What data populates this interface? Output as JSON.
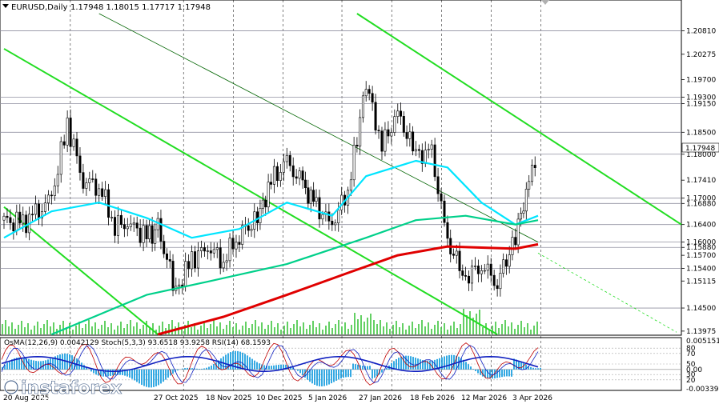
{
  "header": {
    "symbol": "EURUSD,Daily",
    "ohlc": "1.17948 1.18015 1.17717 1.17948",
    "osc_label": "OsMA(12,26,9) 0.0042129  Stoch(5,3,3) 93.6518 93.9258  RSI(14) 68.1593"
  },
  "watermark": {
    "brand": "instaforex",
    "tagline": "Instant Forex Trading"
  },
  "colors": {
    "bull_candle": "#000000",
    "bear_candle": "#000000",
    "ema_fast": "#00e5ff",
    "ema_mid": "#00d08a",
    "ema_slow": "#e00000",
    "channel": "#22dd22",
    "trendline": "#006400",
    "volume": "#22bb22",
    "osma": "#1fa0e0",
    "stoch_main": "#c00000",
    "stoch_signal": "#1020c0",
    "rsi": "#1020c0",
    "level_line": "#9090a0",
    "grid": "#000000"
  },
  "chart_data": {
    "type": "candlestick",
    "symbol": "EURUSD",
    "timeframe": "Daily",
    "ylim": [
      1.139,
      1.212
    ],
    "y_ticks": [
      "1.20810",
      "1.20275",
      "1.19700",
      "1.19300",
      "1.19150",
      "1.18500",
      "1.18000",
      "1.17410",
      "1.17000",
      "1.16880",
      "1.16400",
      "1.16000",
      "1.15880",
      "1.15700",
      "1.15400",
      "1.15115",
      "1.14500",
      "1.13975"
    ],
    "highlight_levels": [
      "1.20810",
      "1.19300",
      "1.19150",
      "1.18500",
      "1.18000",
      "1.17000",
      "1.16880",
      "1.16400",
      "1.16000",
      "1.15880",
      "1.15400",
      "1.14500"
    ],
    "current_price": "1.17948",
    "x_tick_labels": [
      "20 Aug 2025",
      "27 Oct 2025",
      "18 Nov 2025",
      "10 Dec 2025",
      "5 Jan 2026",
      "27 Jan 2026",
      "18 Feb 2026",
      "12 Mar 2026",
      "3 Apr 2026"
    ],
    "x_range": [
      "2025-08-20",
      "2026-04-13"
    ],
    "closes": [
      {
        "date": "2025-08-20",
        "close": 1.165
      },
      {
        "date": "2025-08-27",
        "close": 1.164
      },
      {
        "date": "2025-09-03",
        "close": 1.166
      },
      {
        "date": "2025-09-10",
        "close": 1.17
      },
      {
        "date": "2025-09-17",
        "close": 1.187
      },
      {
        "date": "2025-09-24",
        "close": 1.174
      },
      {
        "date": "2025-10-01",
        "close": 1.173
      },
      {
        "date": "2025-10-08",
        "close": 1.164
      },
      {
        "date": "2025-10-15",
        "close": 1.164
      },
      {
        "date": "2025-10-22",
        "close": 1.161
      },
      {
        "date": "2025-10-27",
        "close": 1.163
      },
      {
        "date": "2025-11-04",
        "close": 1.149
      },
      {
        "date": "2025-11-11",
        "close": 1.156
      },
      {
        "date": "2025-11-18",
        "close": 1.159
      },
      {
        "date": "2025-11-25",
        "close": 1.156
      },
      {
        "date": "2025-12-02",
        "close": 1.162
      },
      {
        "date": "2025-12-10",
        "close": 1.165
      },
      {
        "date": "2025-12-16",
        "close": 1.174
      },
      {
        "date": "2025-12-23",
        "close": 1.178
      },
      {
        "date": "2025-12-30",
        "close": 1.173
      },
      {
        "date": "2026-01-05",
        "close": 1.168
      },
      {
        "date": "2026-01-12",
        "close": 1.164
      },
      {
        "date": "2026-01-19",
        "close": 1.172
      },
      {
        "date": "2026-01-23",
        "close": 1.184
      },
      {
        "date": "2026-01-27",
        "close": 1.196
      },
      {
        "date": "2026-02-03",
        "close": 1.182
      },
      {
        "date": "2026-02-10",
        "close": 1.189
      },
      {
        "date": "2026-02-18",
        "close": 1.18
      },
      {
        "date": "2026-02-25",
        "close": 1.18
      },
      {
        "date": "2026-03-04",
        "close": 1.16
      },
      {
        "date": "2026-03-12",
        "close": 1.152
      },
      {
        "date": "2026-03-19",
        "close": 1.155
      },
      {
        "date": "2026-03-26",
        "close": 1.151
      },
      {
        "date": "2026-04-03",
        "close": 1.161
      },
      {
        "date": "2026-04-09",
        "close": 1.174
      },
      {
        "date": "2026-04-13",
        "close": 1.1795
      }
    ],
    "series": [
      {
        "color": "#00e5ff",
        "values": [
          {
            "date": "2025-08-20",
            "value": 1.161
          },
          {
            "date": "2025-09-10",
            "value": 1.167
          },
          {
            "date": "2025-10-01",
            "value": 1.169
          },
          {
            "date": "2025-10-22",
            "value": 1.1655
          },
          {
            "date": "2025-11-11",
            "value": 1.161
          },
          {
            "date": "2025-12-02",
            "value": 1.163
          },
          {
            "date": "2025-12-23",
            "value": 1.169
          },
          {
            "date": "2026-01-12",
            "value": 1.166
          },
          {
            "date": "2026-01-27",
            "value": 1.175
          },
          {
            "date": "2026-02-18",
            "value": 1.1785
          },
          {
            "date": "2026-03-04",
            "value": 1.177
          },
          {
            "date": "2026-03-19",
            "value": 1.169
          },
          {
            "date": "2026-04-03",
            "value": 1.164
          },
          {
            "date": "2026-04-13",
            "value": 1.166
          }
        ]
      },
      {
        "color": "#00d08a",
        "values": [
          {
            "date": "2025-09-10",
            "value": 1.139
          },
          {
            "date": "2025-10-22",
            "value": 1.148
          },
          {
            "date": "2025-11-18",
            "value": 1.151
          },
          {
            "date": "2025-12-23",
            "value": 1.155
          },
          {
            "date": "2026-01-27",
            "value": 1.161
          },
          {
            "date": "2026-02-18",
            "value": 1.165
          },
          {
            "date": "2026-03-12",
            "value": 1.166
          },
          {
            "date": "2026-04-03",
            "value": 1.164
          },
          {
            "date": "2026-04-13",
            "value": 1.165
          }
        ]
      },
      {
        "color": "#e00000",
        "values": [
          {
            "date": "2025-10-27",
            "value": 1.139
          },
          {
            "date": "2025-11-25",
            "value": 1.143
          },
          {
            "date": "2025-12-23",
            "value": 1.148
          },
          {
            "date": "2026-01-19",
            "value": 1.153
          },
          {
            "date": "2026-02-10",
            "value": 1.157
          },
          {
            "date": "2026-03-04",
            "value": 1.159
          },
          {
            "date": "2026-04-03",
            "value": 1.1585
          },
          {
            "date": "2026-04-13",
            "value": 1.1595
          }
        ]
      }
    ],
    "trendlines": [
      {
        "kind": "channel",
        "from": {
          "date": "2025-08-20",
          "value": 1.204
        },
        "to": {
          "date": "2026-03-26",
          "value": 1.139
        }
      },
      {
        "kind": "channel",
        "from": {
          "date": "2025-08-20",
          "value": 1.168
        },
        "to": {
          "date": "2025-10-27",
          "value": 1.139
        }
      },
      {
        "kind": "channel",
        "from": {
          "date": "2026-01-23",
          "value": 1.212
        },
        "to": {
          "date": "2026-04-13",
          "value": 1.164
        }
      },
      {
        "kind": "thin",
        "from": {
          "date": "2025-10-01",
          "value": 1.212
        },
        "to": {
          "date": "2026-04-13",
          "value": 1.16
        }
      }
    ],
    "oscillator": {
      "ylim": [
        -0.00339,
        0.0051514
      ],
      "ticks": [
        "0.0051514",
        "80",
        "70",
        "50",
        "0.00",
        "30",
        "20",
        "-0.00339"
      ],
      "osma_last": 0.0042129,
      "stoch_main": 93.6518,
      "stoch_signal": 93.9258,
      "rsi": 68.1593
    },
    "grid": true
  }
}
